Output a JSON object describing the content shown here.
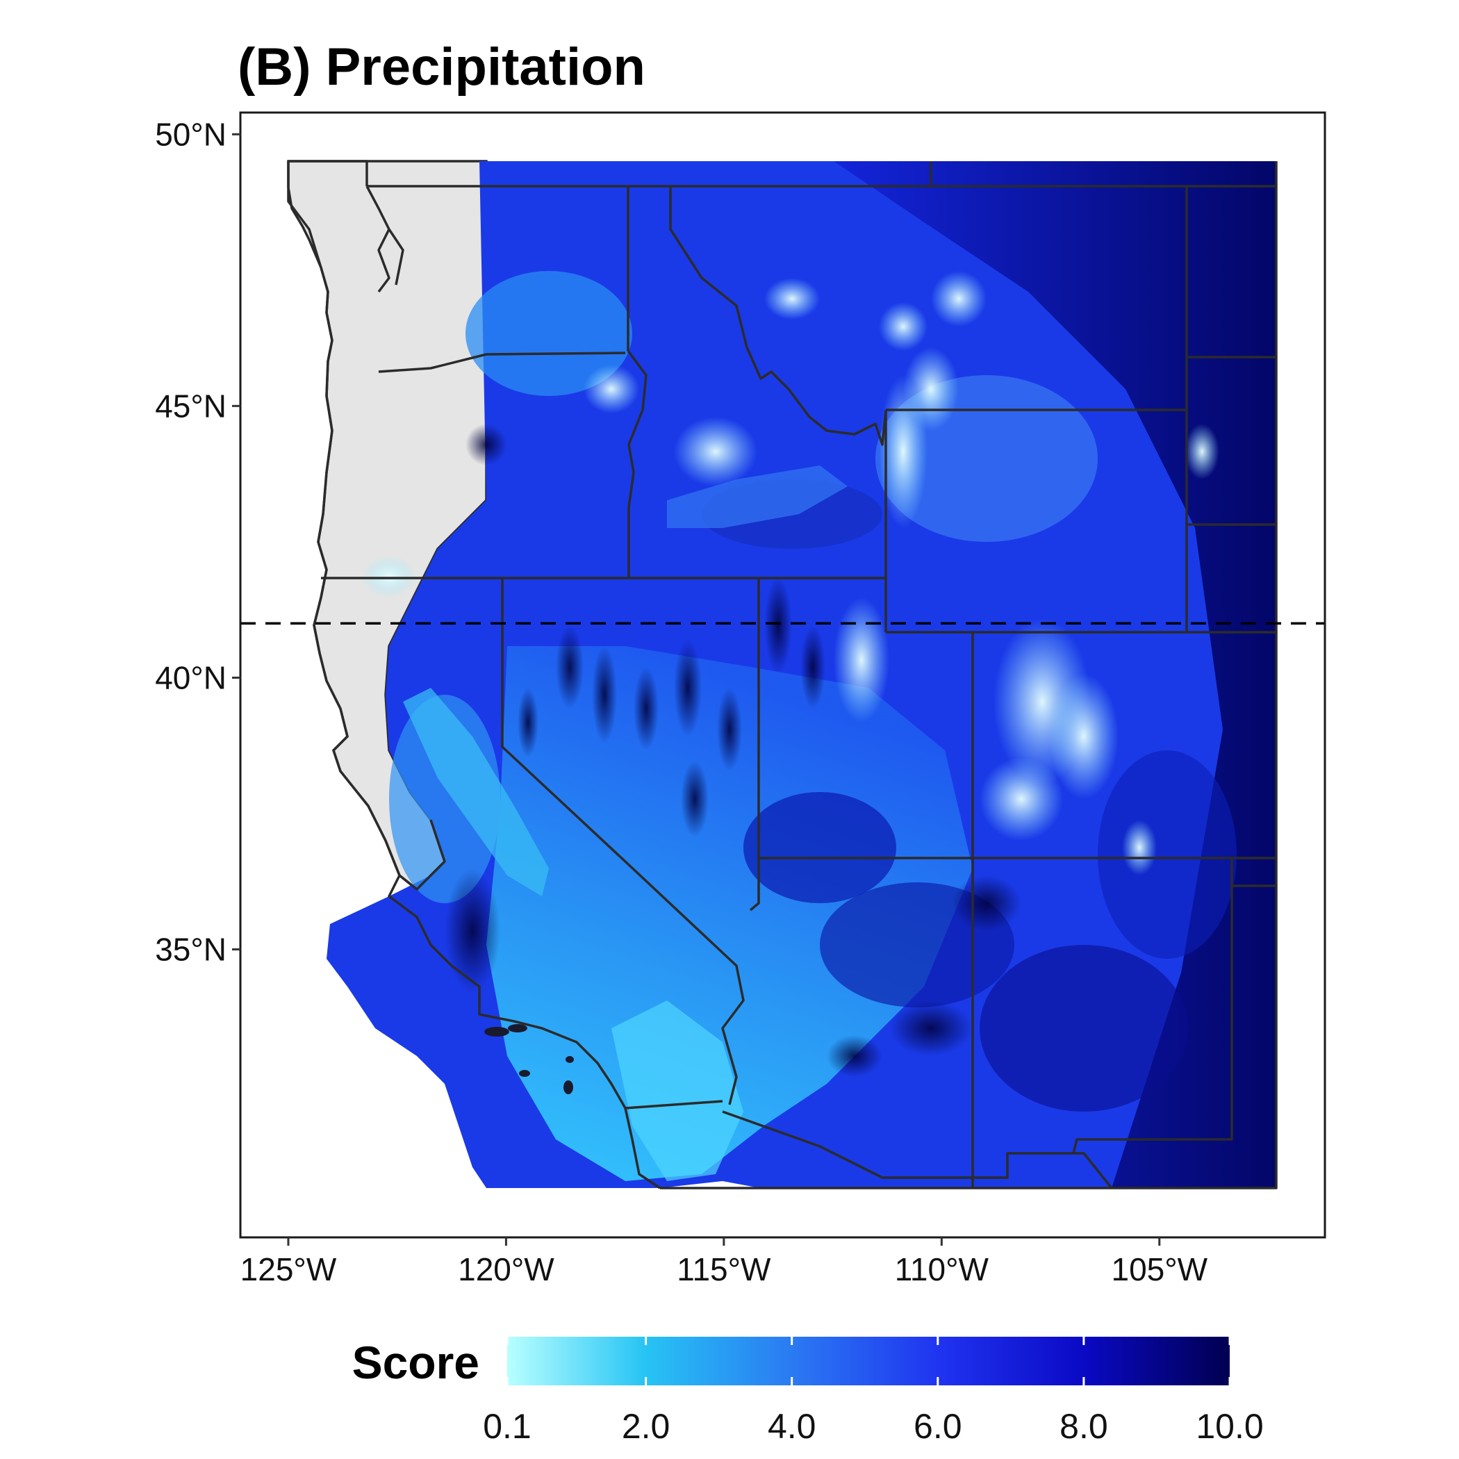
{
  "title": "(B) Precipitation",
  "map": {
    "x_range": [
      -126.1,
      -101.2
    ],
    "y_range": [
      29.7,
      50.4
    ],
    "x_ticks": [
      {
        "value": -125,
        "label": "125°W"
      },
      {
        "value": -120,
        "label": "120°W"
      },
      {
        "value": -115,
        "label": "115°W"
      },
      {
        "value": -110,
        "label": "110°W"
      },
      {
        "value": -105,
        "label": "105°W"
      }
    ],
    "y_ticks": [
      {
        "value": 50,
        "label": "50°N"
      },
      {
        "value": 45,
        "label": "45°N"
      },
      {
        "value": 40,
        "label": "40°N"
      },
      {
        "value": 35,
        "label": "35°N"
      }
    ],
    "reference_latitude": 41.0,
    "reference_line_style": "dashed",
    "land_outside_data_color": "#e5e5e5",
    "border_color": "#2b2b2b"
  },
  "legend": {
    "title": "Score",
    "labels": [
      "0.1",
      "2.0",
      "4.0",
      "6.0",
      "8.0",
      "10.0"
    ],
    "values": [
      0.1,
      2.0,
      4.0,
      6.0,
      8.0,
      10.0
    ],
    "range": [
      0.1,
      10.0
    ],
    "colors": [
      "#b8ffff",
      "#27c4f4",
      "#2a78f2",
      "#1f33f0",
      "#0a09c4",
      "#000050"
    ],
    "placement": "bottom"
  }
}
